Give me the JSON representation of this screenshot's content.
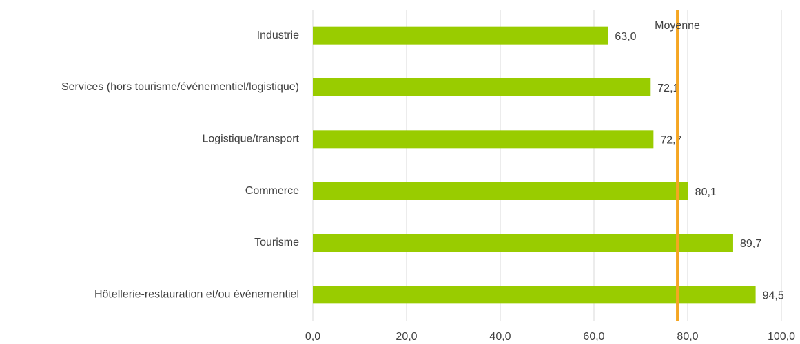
{
  "chart_data": {
    "type": "bar",
    "orientation": "horizontal",
    "categories": [
      "Industrie",
      "Services (hors tourisme/événementiel/logistique)",
      "Logistique/transport",
      "Commerce",
      "Tourisme",
      "Hôtellerie-restauration et/ou événementiel"
    ],
    "values": [
      63.0,
      72.1,
      72.7,
      80.1,
      89.7,
      94.5
    ],
    "value_labels": [
      "63,0",
      "72,1",
      "72,7",
      "80,1",
      "89,7",
      "94,5"
    ],
    "color": "#99cc00",
    "xlim": [
      0,
      100
    ],
    "xticks": [
      {
        "value": 0,
        "label": "0,0"
      },
      {
        "value": 20,
        "label": "20,0"
      },
      {
        "value": 40,
        "label": "40,0"
      },
      {
        "value": 60,
        "label": "60,0"
      },
      {
        "value": 80,
        "label": "80,0"
      },
      {
        "value": 100,
        "label": "100,0"
      }
    ],
    "grid": true,
    "reference_line": {
      "label": "Moyenne",
      "value": 77.8,
      "color": "#f5a623"
    }
  }
}
